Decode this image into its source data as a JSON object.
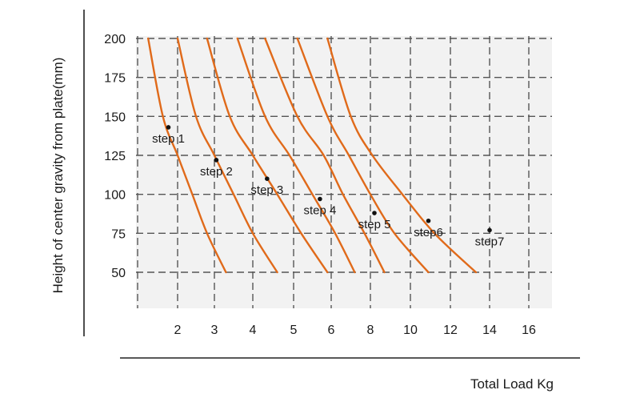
{
  "chart_data": {
    "type": "line",
    "title": "",
    "xlabel": "Total Load Kg",
    "ylabel": "Height of center gravity from plate(mm)",
    "x_ticks": [
      "2",
      "3",
      "4",
      "5",
      "6",
      "8",
      "10",
      "12",
      "14",
      "16"
    ],
    "y_ticks": [
      "50",
      "75",
      "100",
      "125",
      "150",
      "175",
      "200"
    ],
    "ylim": [
      50,
      200
    ],
    "grid": true,
    "colors": {
      "curve": "#e06a1a",
      "grid": "#555555",
      "plot_bg": "#f2f2f2"
    },
    "series": [
      {
        "points": [
          [
            1.2,
            200
          ],
          [
            1.6,
            150
          ],
          [
            2.0,
            125
          ],
          [
            2.4,
            100
          ],
          [
            2.8,
            75
          ],
          [
            3.3,
            50
          ]
        ]
      },
      {
        "points": [
          [
            2.0,
            200
          ],
          [
            2.5,
            150
          ],
          [
            3.0,
            125
          ],
          [
            3.5,
            100
          ],
          [
            4.0,
            75
          ],
          [
            4.6,
            50
          ]
        ]
      },
      {
        "points": [
          [
            2.8,
            200
          ],
          [
            3.4,
            150
          ],
          [
            4.0,
            125
          ],
          [
            4.6,
            100
          ],
          [
            5.2,
            75
          ],
          [
            5.9,
            50
          ]
        ]
      },
      {
        "points": [
          [
            3.6,
            200
          ],
          [
            4.3,
            150
          ],
          [
            4.9,
            125
          ],
          [
            5.5,
            100
          ],
          [
            6.2,
            75
          ],
          [
            7.2,
            50
          ]
        ]
      },
      {
        "points": [
          [
            4.3,
            200
          ],
          [
            5.1,
            150
          ],
          [
            5.8,
            125
          ],
          [
            6.6,
            100
          ],
          [
            7.7,
            75
          ],
          [
            8.7,
            50
          ]
        ]
      },
      {
        "points": [
          [
            5.1,
            200
          ],
          [
            5.9,
            150
          ],
          [
            6.9,
            125
          ],
          [
            8.0,
            100
          ],
          [
            9.2,
            75
          ],
          [
            10.9,
            50
          ]
        ]
      },
      {
        "points": [
          [
            5.9,
            200
          ],
          [
            7.0,
            150
          ],
          [
            8.1,
            125
          ],
          [
            9.6,
            100
          ],
          [
            11.2,
            75
          ],
          [
            13.3,
            50
          ]
        ]
      }
    ],
    "annotations": [
      {
        "label": "step 1",
        "x": 1.75,
        "y": 143
      },
      {
        "label": "step 2",
        "x": 3.05,
        "y": 122
      },
      {
        "label": "step 3",
        "x": 4.35,
        "y": 110
      },
      {
        "label": "step 4",
        "x": 5.7,
        "y": 97
      },
      {
        "label": "step 5",
        "x": 8.2,
        "y": 88
      },
      {
        "label": "step6",
        "x": 10.9,
        "y": 83
      },
      {
        "label": "step7",
        "x": 14.0,
        "y": 77
      }
    ]
  }
}
